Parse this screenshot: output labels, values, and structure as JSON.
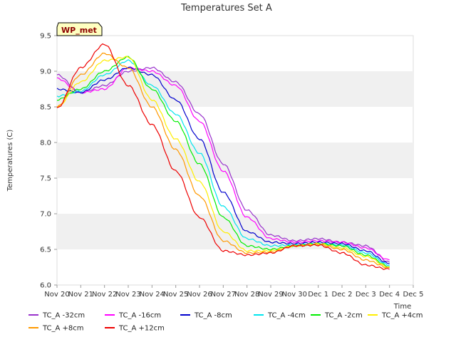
{
  "chart_data": {
    "type": "line",
    "title": "Temperatures Set A",
    "xlabel": "Time",
    "ylabel": "Temperatures (C)",
    "ylim": [
      6.0,
      9.5
    ],
    "xlim": [
      "2023-11-20",
      "2023-12-05"
    ],
    "x_tick_labels": [
      "Nov 20",
      "Nov 21",
      "Nov 22",
      "Nov 23",
      "Nov 24",
      "Nov 25",
      "Nov 26",
      "Nov 27",
      "Nov 28",
      "Nov 29",
      "Nov 30",
      "Dec 1",
      "Dec 2",
      "Dec 3",
      "Dec 4",
      "Dec 5"
    ],
    "y_ticks": [
      6.0,
      6.5,
      7.0,
      7.5,
      8.0,
      8.5,
      9.0,
      9.5
    ],
    "y_tick_labels": [
      "6.0",
      "6.5",
      "7.0",
      "7.5",
      "8.0",
      "8.5",
      "9.0",
      "9.5"
    ],
    "grid": "horizontal bands",
    "band_color": "#f0f0f0",
    "badge": "WP_met",
    "badge_color": "#8b0000",
    "badge_bg": "#ffffc0",
    "legend_position": "bottom",
    "x": [
      "2023-11-20",
      "2023-11-21",
      "2023-11-22",
      "2023-11-23",
      "2023-11-24",
      "2023-11-25",
      "2023-11-26",
      "2023-11-27",
      "2023-11-28",
      "2023-11-29",
      "2023-11-30",
      "2023-12-01",
      "2023-12-02",
      "2023-12-03",
      "2023-12-04"
    ],
    "series": [
      {
        "name": "TC_A -32cm",
        "color": "#9932cc",
        "values": [
          8.95,
          8.7,
          8.8,
          9.0,
          9.05,
          8.85,
          8.4,
          7.7,
          7.05,
          6.7,
          6.62,
          6.65,
          6.6,
          6.55,
          6.32
        ]
      },
      {
        "name": "TC_A -16cm",
        "color": "#ff00ff",
        "values": [
          8.9,
          8.7,
          8.75,
          9.05,
          9.0,
          8.8,
          8.3,
          7.6,
          6.95,
          6.65,
          6.6,
          6.62,
          6.6,
          6.52,
          6.35
        ]
      },
      {
        "name": "TC_A -8cm",
        "color": "#0000cd",
        "values": [
          8.75,
          8.7,
          8.88,
          9.05,
          8.95,
          8.6,
          8.05,
          7.3,
          6.75,
          6.6,
          6.58,
          6.6,
          6.58,
          6.48,
          6.3
        ]
      },
      {
        "name": "TC_A -4cm",
        "color": "#00e5ee",
        "values": [
          8.65,
          8.72,
          8.95,
          9.15,
          8.8,
          8.4,
          7.85,
          7.1,
          6.65,
          6.55,
          6.56,
          6.58,
          6.56,
          6.45,
          6.28
        ]
      },
      {
        "name": "TC_A -2cm",
        "color": "#00ee00",
        "values": [
          8.6,
          8.75,
          9.0,
          9.2,
          8.75,
          8.3,
          7.7,
          6.95,
          6.55,
          6.5,
          6.55,
          6.58,
          6.55,
          6.42,
          6.26
        ]
      },
      {
        "name": "TC_A +4cm",
        "color": "#ffee00",
        "values": [
          8.5,
          8.85,
          9.15,
          9.2,
          8.6,
          8.05,
          7.45,
          6.75,
          6.48,
          6.48,
          6.55,
          6.58,
          6.52,
          6.4,
          6.25
        ]
      },
      {
        "name": "TC_A +8cm",
        "color": "#ff9900",
        "values": [
          8.5,
          8.95,
          9.25,
          9.05,
          8.5,
          7.9,
          7.25,
          6.62,
          6.45,
          6.46,
          6.55,
          6.57,
          6.5,
          6.35,
          6.24
        ]
      },
      {
        "name": "TC_A +12cm",
        "color": "#ee0000",
        "values": [
          8.48,
          9.05,
          9.38,
          8.8,
          8.25,
          7.6,
          6.95,
          6.48,
          6.42,
          6.45,
          6.55,
          6.56,
          6.45,
          6.28,
          6.22
        ]
      }
    ]
  }
}
